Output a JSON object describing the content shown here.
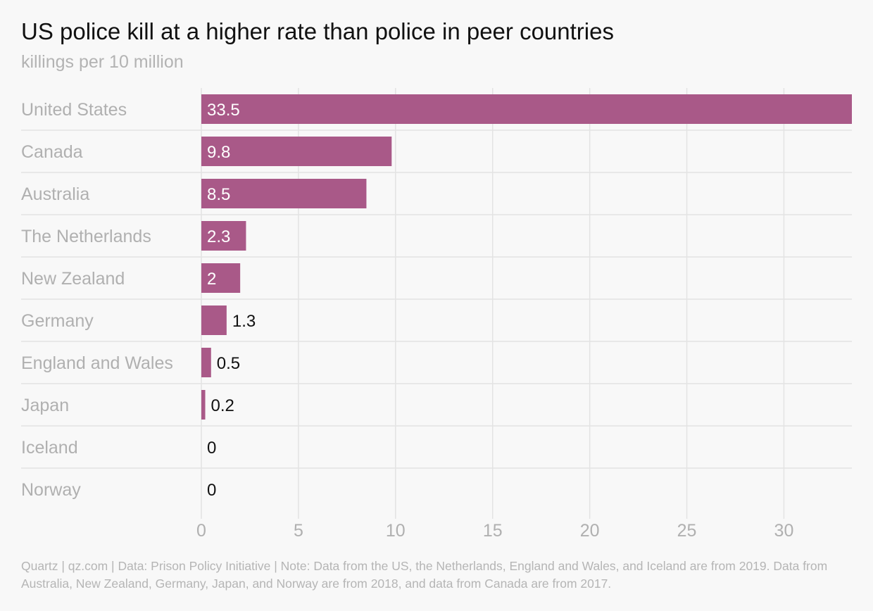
{
  "header": {
    "title": "US police kill at a higher rate than police in peer countries",
    "subtitle": "killings per 10 million"
  },
  "footer": {
    "source": "Quartz | qz.com | Data: Prison Policy Initiative | Note: Data from the US, the Netherlands, England and Wales, and Iceland are from 2019. Data from Australia, New Zealand, Germany, Japan, and Norway are from 2018, and data from Canada are from 2017."
  },
  "colors": {
    "bar": "#a95988",
    "grid": "#e3e3e3",
    "label": "#b0b0b0",
    "value_inside": "#ffffff",
    "value_outside": "#111111"
  },
  "chart_data": {
    "type": "bar",
    "orientation": "horizontal",
    "title": "US police kill at a higher rate than police in peer countries",
    "subtitle": "killings per 10 million",
    "categories": [
      "United States",
      "Canada",
      "Australia",
      "The Netherlands",
      "New Zealand",
      "Germany",
      "England and Wales",
      "Japan",
      "Iceland",
      "Norway"
    ],
    "values": [
      33.5,
      9.8,
      8.5,
      2.3,
      2,
      1.3,
      0.5,
      0.2,
      0,
      0
    ],
    "value_labels": [
      "33.5",
      "9.8",
      "8.5",
      "2.3",
      "2",
      "1.3",
      "0.5",
      "0.2",
      "0",
      "0"
    ],
    "xlim": [
      0,
      33.5
    ],
    "xticks": [
      0,
      5,
      10,
      15,
      20,
      25,
      30
    ],
    "xtick_labels": [
      "0",
      "5",
      "10",
      "15",
      "20",
      "25",
      "30"
    ],
    "grid": true,
    "legend": "none"
  }
}
